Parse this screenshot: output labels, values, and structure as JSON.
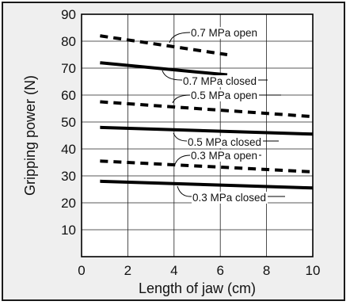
{
  "chart_data": {
    "type": "line",
    "xlabel": "Length of jaw (cm)",
    "ylabel": "Gripping power (N)",
    "xlim": [
      0,
      10
    ],
    "ylim": [
      0,
      90
    ],
    "xticks": [
      "0",
      "2",
      "4",
      "6",
      "8",
      "10"
    ],
    "yticks": [
      "10",
      "20",
      "30",
      "40",
      "50",
      "60",
      "70",
      "80",
      "90"
    ],
    "grid": true,
    "series": [
      {
        "name": "0.7 MPa open",
        "style": "dashed",
        "x": [
          0.8,
          6.3
        ],
        "y": [
          82,
          75
        ]
      },
      {
        "name": "0.7 MPa closed",
        "style": "solid",
        "x": [
          0.8,
          6.3
        ],
        "y": [
          72,
          67.5
        ]
      },
      {
        "name": "0.5 MPa open",
        "style": "dashed",
        "x": [
          0.8,
          10
        ],
        "y": [
          57.5,
          52
        ]
      },
      {
        "name": "0.5 MPa closed",
        "style": "solid",
        "x": [
          0.8,
          10
        ],
        "y": [
          48,
          45.5
        ]
      },
      {
        "name": "0.3 MPa open",
        "style": "dashed",
        "x": [
          0.8,
          10
        ],
        "y": [
          35.5,
          31.5
        ]
      },
      {
        "name": "0.3 MPa closed",
        "style": "solid",
        "x": [
          0.8,
          10
        ],
        "y": [
          28,
          25.5
        ]
      }
    ],
    "line_color": "#000000",
    "grid_color": "#222222",
    "plot_background": "#ffffff",
    "frame_background": "#efefef"
  }
}
